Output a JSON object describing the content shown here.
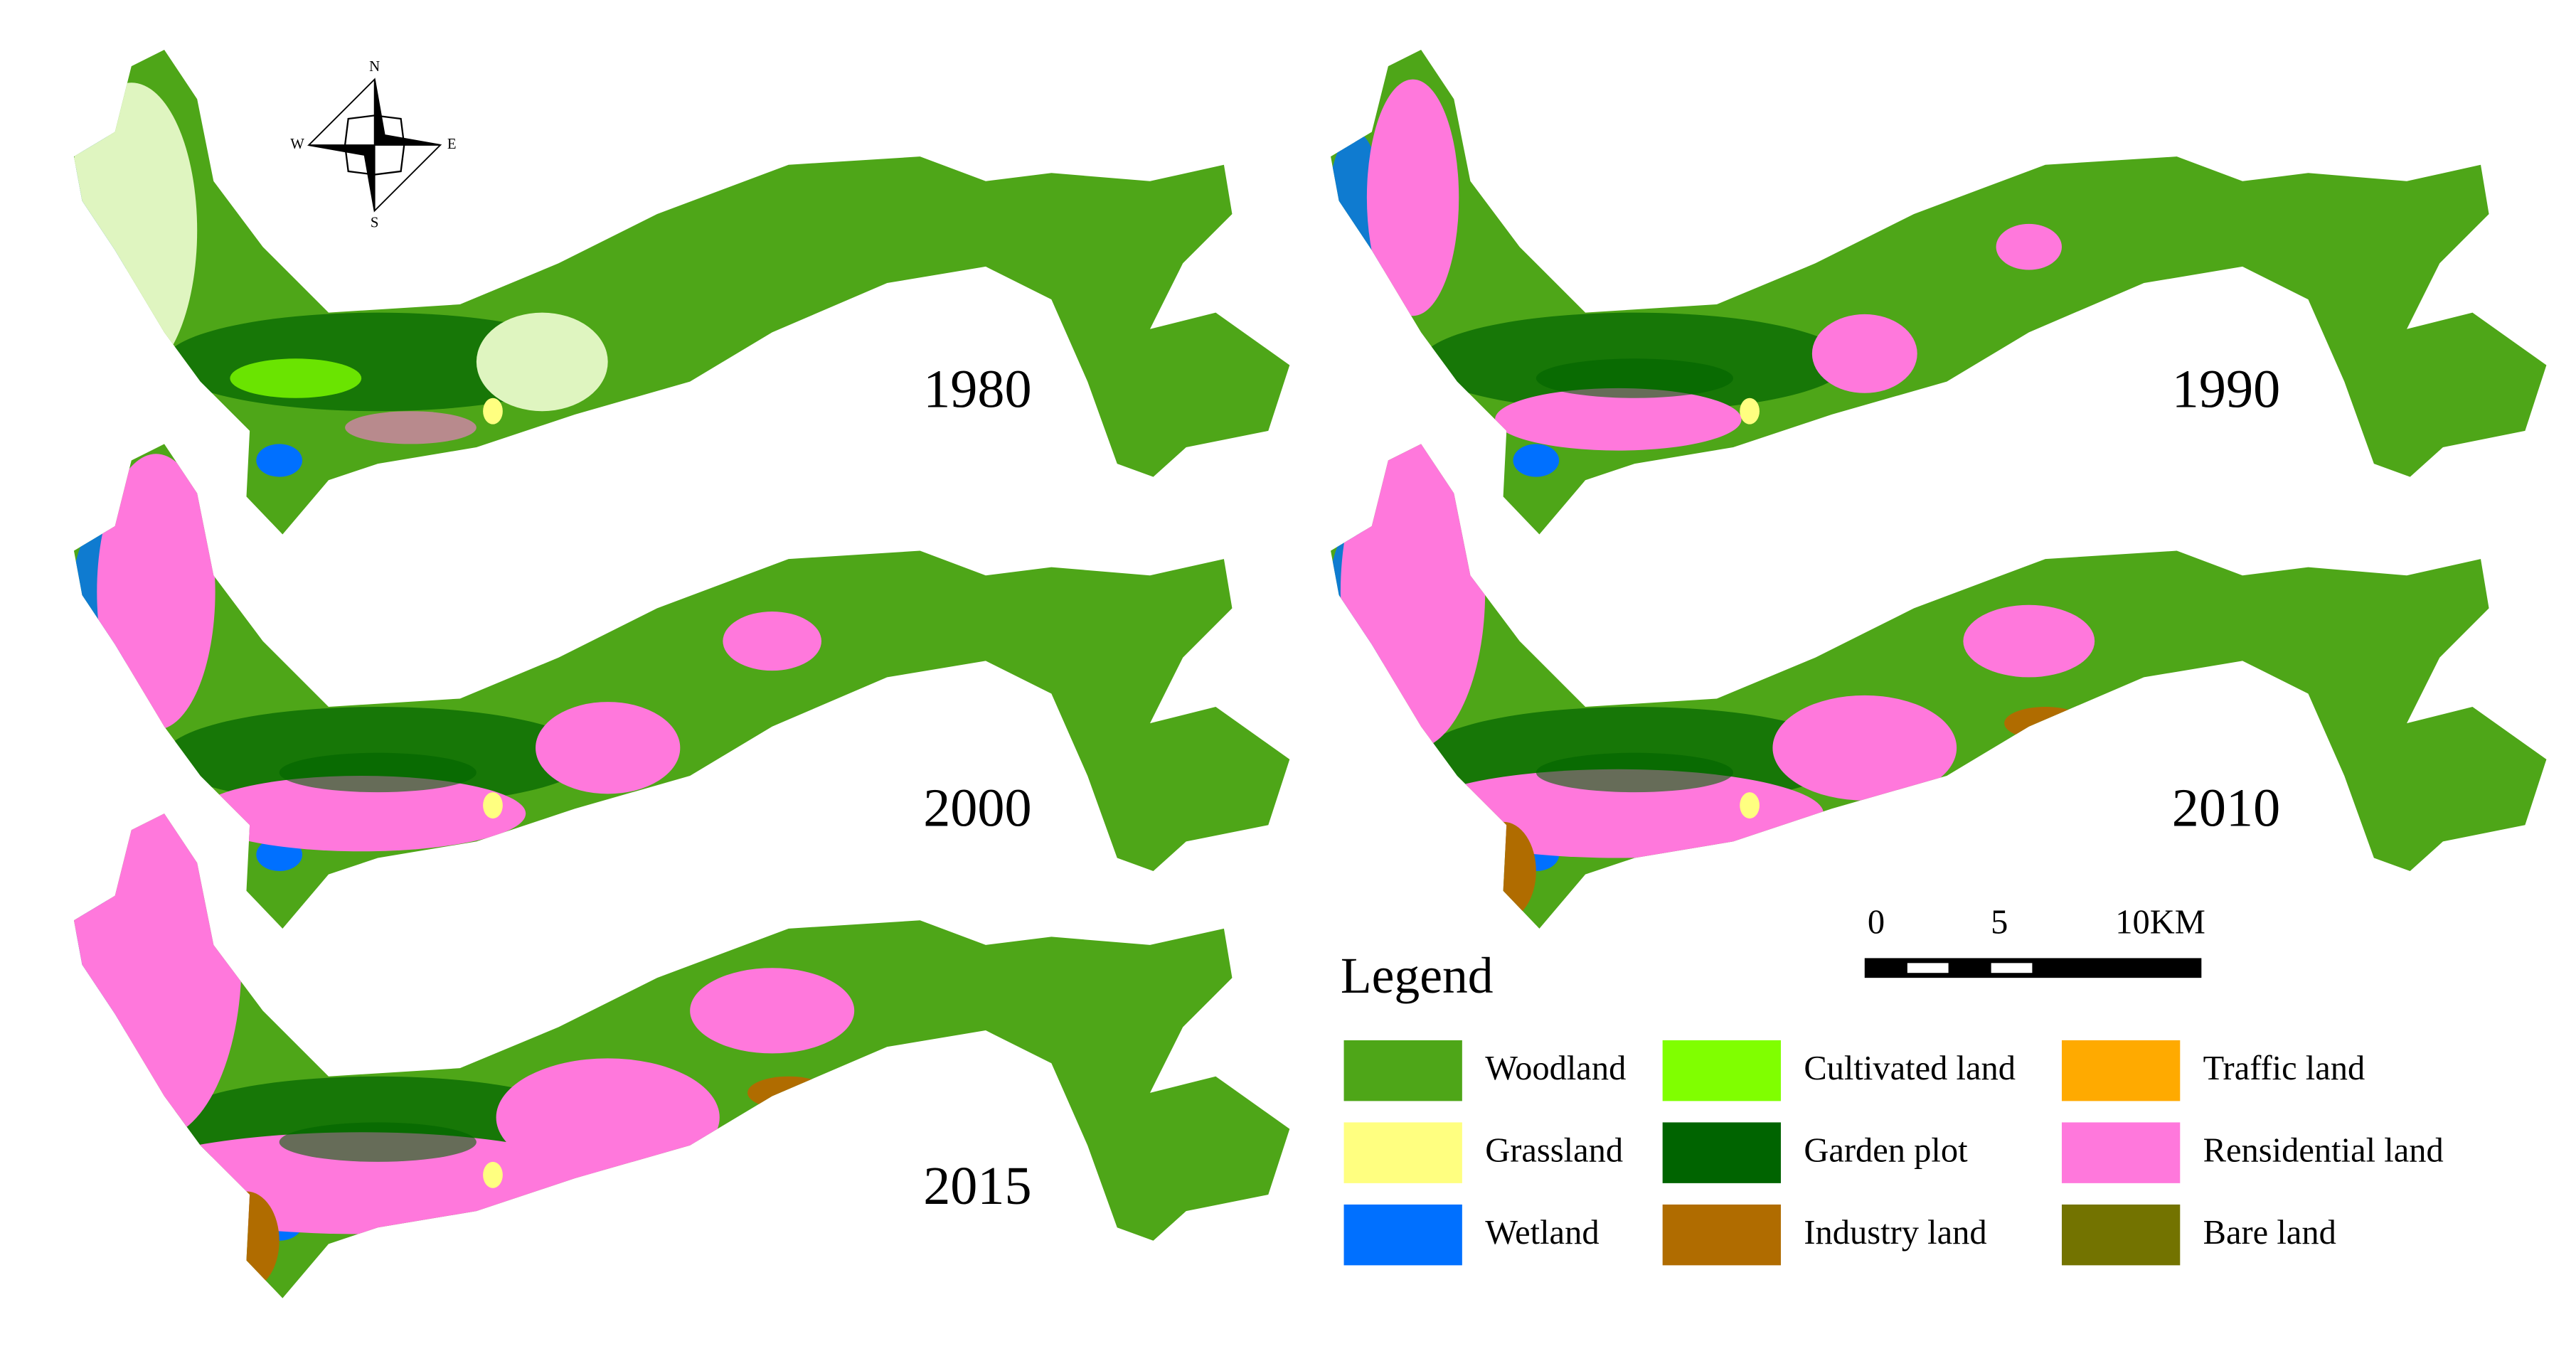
{
  "compass": {
    "n": "N",
    "s": "S",
    "w": "W",
    "e": "E"
  },
  "panels": [
    {
      "year": "1980"
    },
    {
      "year": "1990"
    },
    {
      "year": "2000"
    },
    {
      "year": "2010"
    },
    {
      "year": "2015"
    }
  ],
  "scale_bar": {
    "labels": [
      "0",
      "5",
      "10KM"
    ]
  },
  "legend": {
    "title": "Legend",
    "items": [
      {
        "label": "Woodland",
        "color": "#4ea618"
      },
      {
        "label": "Grassland",
        "color": "#ffff80"
      },
      {
        "label": "Wetland",
        "color": "#0070ff"
      },
      {
        "label": "Cultivated land",
        "color": "#80ff00"
      },
      {
        "label": "Garden plot",
        "color": "#006400"
      },
      {
        "label": "Industry land",
        "color": "#b06c00"
      },
      {
        "label": "Traffic land",
        "color": "#ffaa00"
      },
      {
        "label": "Rensidential land",
        "color": "#ff78dc"
      },
      {
        "label": "Bare land",
        "color": "#737300"
      }
    ]
  }
}
